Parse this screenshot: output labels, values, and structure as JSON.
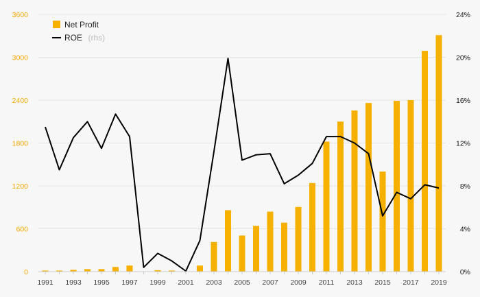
{
  "chart_data": {
    "type": "bar",
    "x": [
      1991,
      1992,
      1993,
      1994,
      1995,
      1996,
      1997,
      1998,
      1999,
      2000,
      2001,
      2002,
      2003,
      2004,
      2005,
      2006,
      2007,
      2008,
      2009,
      2010,
      2011,
      2012,
      2013,
      2014,
      2015,
      2016,
      2017,
      2018,
      2019
    ],
    "x_tick_labels": [
      "1991",
      "1993",
      "1995",
      "1997",
      "1999",
      "2001",
      "2003",
      "2005",
      "2007",
      "2009",
      "2011",
      "2013",
      "2015",
      "2017",
      "2019"
    ],
    "series": [
      {
        "name": "Net Profit",
        "type": "bar",
        "axis": "left",
        "color": "#f5b000",
        "values": [
          15,
          15,
          25,
          35,
          35,
          65,
          85,
          0,
          20,
          15,
          0,
          85,
          415,
          860,
          505,
          640,
          840,
          685,
          905,
          1240,
          1820,
          2100,
          2255,
          2360,
          1400,
          2390,
          2400,
          3090,
          3310
        ]
      },
      {
        "name": "ROE",
        "type": "line",
        "axis": "right",
        "color": "#000000",
        "values": [
          13.5,
          9.5,
          12.5,
          14,
          11.5,
          14.7,
          12.6,
          0.4,
          1.7,
          1.0,
          0.05,
          2.9,
          11.2,
          19.9,
          10.4,
          10.9,
          11.0,
          8.2,
          9.0,
          10.1,
          12.6,
          12.6,
          12.0,
          11.0,
          5.2,
          7.4,
          6.8,
          8.1,
          7.8
        ]
      }
    ],
    "legend": {
      "net_profit": "Net Profit",
      "roe": "ROE",
      "roe_suffix": "(rhs)",
      "position": "top-left"
    },
    "y_left": {
      "ylim": [
        0,
        3600
      ],
      "ticks": [
        "0",
        "600",
        "1200",
        "1800",
        "2400",
        "3000",
        "3600"
      ]
    },
    "y_right": {
      "ylim": [
        0,
        24
      ],
      "ticks": [
        "0%",
        "4%",
        "8%",
        "12%",
        "16%",
        "20%",
        "24%"
      ]
    },
    "grid": true
  }
}
